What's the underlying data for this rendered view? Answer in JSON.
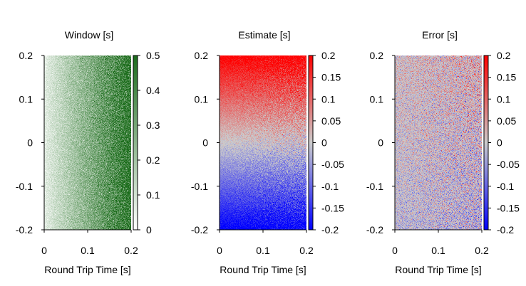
{
  "chart_data": [
    {
      "type": "heatmap",
      "title": "Window [s]",
      "xlabel": "Round Trip Time [s]",
      "ylabel": "",
      "xlim": [
        0,
        0.2
      ],
      "ylim": [
        -0.2,
        0.2
      ],
      "xticks": [
        "0",
        "0.1",
        "0.2"
      ],
      "yticks": [
        "-0.2",
        "-0.1",
        "0",
        "0.1",
        "0.2"
      ],
      "colorbar": {
        "range": [
          0,
          0.5
        ],
        "ticks": [
          "0",
          "0.1",
          "0.2",
          "0.3",
          "0.4",
          "0.5"
        ],
        "colors": [
          "#ffffff",
          "#1a6b1a"
        ]
      },
      "pattern": "value increases with x, independent of y, noisy",
      "seed": 11
    },
    {
      "type": "heatmap",
      "title": "Estimate [s]",
      "xlabel": "Round Trip Time [s]",
      "ylabel": "",
      "xlim": [
        0,
        0.2
      ],
      "ylim": [
        -0.2,
        0.2
      ],
      "xticks": [
        "0",
        "0.1",
        "0.2"
      ],
      "yticks": [
        "-0.2",
        "-0.1",
        "0",
        "0.1",
        "0.2"
      ],
      "colorbar": {
        "range": [
          -0.2,
          0.2
        ],
        "ticks": [
          "-0.2",
          "-0.15",
          "-0.1",
          "-0.05",
          "0",
          "0.05",
          "0.1",
          "0.15",
          "0.2"
        ],
        "colors": [
          "#0000ff",
          "#cccccc",
          "#ff0000"
        ]
      },
      "pattern": "value approximately equals y, noise grows with x",
      "seed": 23
    },
    {
      "type": "heatmap",
      "title": "Error [s]",
      "xlabel": "Round Trip Time [s]",
      "ylabel": "",
      "xlim": [
        0,
        0.2
      ],
      "ylim": [
        -0.2,
        0.2
      ],
      "xticks": [
        "0",
        "0.1",
        "0.2"
      ],
      "yticks": [
        "-0.2",
        "-0.1",
        "0",
        "0.1",
        "0.2"
      ],
      "colorbar": {
        "range": [
          -0.2,
          0.2
        ],
        "ticks": [
          "-0.2",
          "-0.15",
          "-0.1",
          "-0.05",
          "0",
          "0.05",
          "0.1",
          "0.15",
          "0.2"
        ],
        "colors": [
          "#0000ff",
          "#cccccc",
          "#ff0000"
        ]
      },
      "pattern": "small values near zero, slight positive bias at top and negative at bottom, noisy",
      "seed": 37
    }
  ]
}
